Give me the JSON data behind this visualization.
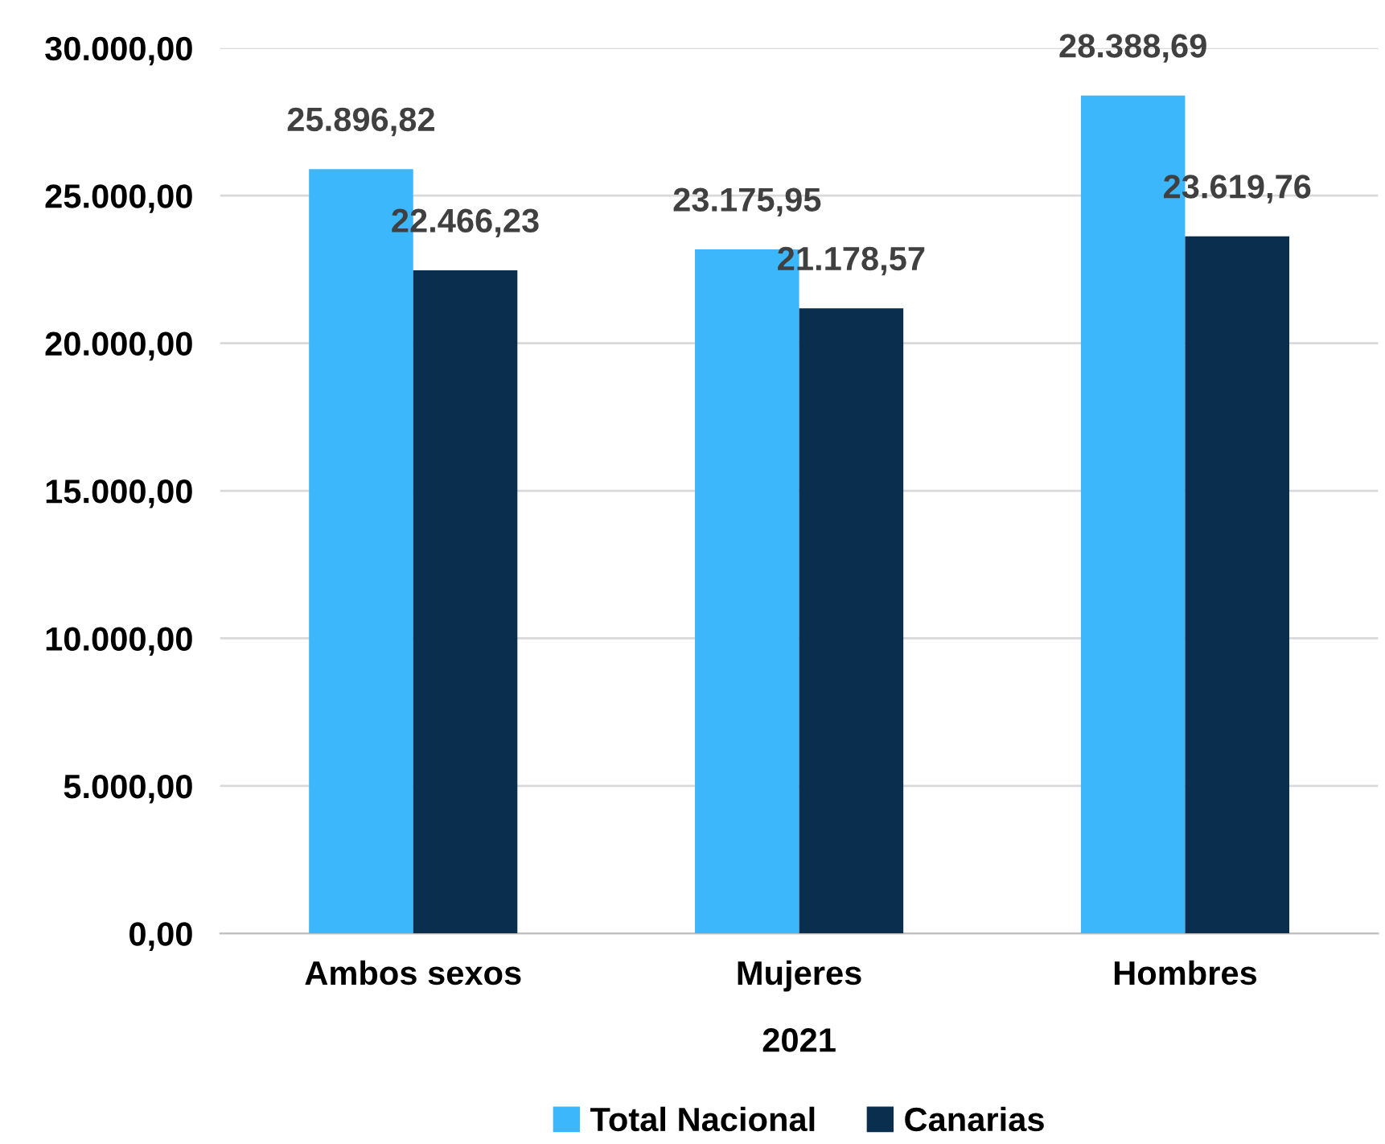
{
  "chart_data": {
    "type": "bar",
    "categories": [
      "Ambos sexos",
      "Mujeres",
      "Hombres"
    ],
    "xlabel": "2021",
    "series": [
      {
        "name": "Total Nacional",
        "color": "#3db7fb",
        "values": [
          25896.82,
          23175.95,
          28388.69
        ],
        "value_labels": [
          "25.896,82",
          "23.175,95",
          "28.388,69"
        ]
      },
      {
        "name": "Canarias",
        "color": "#0a2e4e",
        "values": [
          22466.23,
          21178.57,
          23619.76
        ],
        "value_labels": [
          "22.466,23",
          "21.178,57",
          "23.619,76"
        ]
      }
    ],
    "ylim": [
      0,
      30000
    ],
    "yticks": [
      {
        "value": 0,
        "label": "0,00"
      },
      {
        "value": 5000,
        "label": "5.000,00"
      },
      {
        "value": 10000,
        "label": "10.000,00"
      },
      {
        "value": 15000,
        "label": "15.000,00"
      },
      {
        "value": 20000,
        "label": "20.000,00"
      },
      {
        "value": 25000,
        "label": "25.000,00"
      },
      {
        "value": 30000,
        "label": "30.000,00"
      }
    ],
    "grid": "y",
    "legend": "bottom"
  }
}
